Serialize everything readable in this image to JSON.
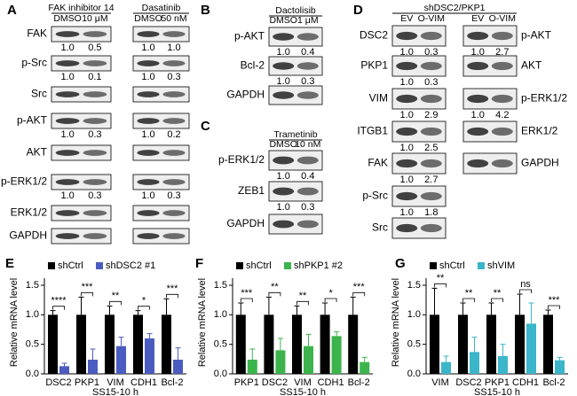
{
  "blots": [
    {
      "label": "A",
      "groups": [
        {
          "header": "FAK inhibitor 14",
          "lanes": [
            "DMSO",
            "10 μM"
          ],
          "rows": [
            "FAK",
            "p-Src",
            "Src",
            "p-AKT",
            "AKT",
            "p-ERK1/2",
            "ERK1/2",
            "GAPDH"
          ],
          "quant": [
            [
              "1.0",
              "0.5"
            ],
            [
              "1.0",
              "0.1"
            ],
            null,
            [
              "1.0",
              "0.3"
            ],
            null,
            [
              "1.0",
              "0.3"
            ],
            null,
            null
          ]
        },
        {
          "header": "Dasatinib",
          "lanes": [
            "DMSO",
            "50 nM"
          ],
          "quant": [
            [
              "1.0",
              "1.0"
            ],
            [
              "1.0",
              "0.3"
            ],
            null,
            [
              "1.0",
              "0.2"
            ],
            null,
            [
              "1.0",
              "0.3"
            ],
            null,
            null
          ]
        }
      ]
    },
    {
      "label": "B",
      "groups": [
        {
          "header": "Dactolisib",
          "lanes": [
            "DMSO",
            "1 μM"
          ],
          "rows": [
            "p-AKT",
            "Bcl-2",
            "GAPDH"
          ],
          "quant": [
            [
              "1.0",
              "0.4"
            ],
            [
              "1.0",
              "0.3"
            ],
            null
          ]
        }
      ]
    },
    {
      "label": "C",
      "groups": [
        {
          "header": "Trametinib",
          "lanes": [
            "DMSO",
            "10 nM"
          ],
          "rows": [
            "p-ERK1/2",
            "ZEB1",
            "GAPDH"
          ],
          "quant": [
            [
              "1.0",
              "0.4"
            ],
            [
              "1.0",
              "0.3"
            ],
            null
          ]
        }
      ]
    },
    {
      "label": "D",
      "groups": [
        {
          "header": "shDSC2/PKP1",
          "lanes": [
            "EV",
            "O-VIM"
          ],
          "rows": [
            "DSC2",
            "PKP1",
            "VIM",
            "ITGB1",
            "FAK",
            "p-Src",
            "Src"
          ],
          "quant": [
            [
              "1.0",
              "0.3"
            ],
            [
              "1.0",
              "0.3"
            ],
            [
              "1.0",
              "2.9"
            ],
            [
              "1.0",
              "2.5"
            ],
            [
              "1.0",
              "2.7"
            ],
            [
              "1.0",
              "1.8"
            ],
            null
          ]
        },
        {
          "lanes": [
            "EV",
            "O-VIM"
          ],
          "rows": [
            "p-AKT",
            "AKT",
            "p-ERK1/2",
            "ERK1/2",
            "GAPDH"
          ],
          "quant": [
            [
              "1.0",
              "2.7"
            ],
            null,
            [
              "1.0",
              "4.2"
            ],
            null,
            null
          ]
        }
      ]
    }
  ],
  "chart_data": [
    {
      "type": "bar",
      "label": "E",
      "ylabel": "Relative mRNA level",
      "xlabel": "SS15-10 h",
      "categories": [
        "DSC2",
        "PKP1",
        "VIM",
        "CDH1",
        "Bcl-2"
      ],
      "series": [
        {
          "name": "shCtrl",
          "color": "#000000",
          "values": [
            1,
            1,
            1,
            1,
            1
          ],
          "errors": [
            0.07,
            0.3,
            0.15,
            0.07,
            0.27
          ]
        },
        {
          "name": "shDSC2 #1",
          "color": "#4a5cc0",
          "values": [
            0.13,
            0.24,
            0.47,
            0.6,
            0.24
          ],
          "errors": [
            0.05,
            0.18,
            0.15,
            0.08,
            0.2
          ]
        }
      ],
      "annotations": [
        "****",
        "***",
        "**",
        "*",
        "***"
      ],
      "ylim": [
        0,
        1.5
      ],
      "yticks": [
        {
          "value": 0,
          "label": "0.0"
        },
        0.5,
        {
          "value": 1,
          "label": "1.0"
        },
        1.5
      ]
    },
    {
      "type": "bar",
      "label": "F",
      "ylabel": "Relative mRNA level",
      "xlabel": "SS15-10 h",
      "categories": [
        "PKP1",
        "DSC2",
        "VIM",
        "CDH1",
        "Bcl-2"
      ],
      "series": [
        {
          "name": "shCtrl",
          "color": "#000000",
          "values": [
            1,
            1,
            1,
            1,
            1
          ],
          "errors": [
            0.2,
            0.3,
            0.15,
            0.2,
            0.3
          ]
        },
        {
          "name": "shPKP1 #2",
          "color": "#3cb44b",
          "values": [
            0.24,
            0.4,
            0.47,
            0.64,
            0.2
          ],
          "errors": [
            0.18,
            0.2,
            0.2,
            0.07,
            0.08
          ]
        }
      ],
      "annotations": [
        "***",
        "**",
        "**",
        "*",
        "***"
      ],
      "ylim": [
        0,
        1.5
      ],
      "yticks": [
        {
          "value": 0,
          "label": "0.0"
        },
        0.5,
        {
          "value": 1,
          "label": "1.0"
        },
        1.5
      ]
    },
    {
      "type": "bar",
      "label": "G",
      "ylabel": "Relative mRNA level",
      "xlabel": "SS15-10 h",
      "categories": [
        "VIM",
        "DSC2",
        "PKP1",
        "CDH1",
        "Bcl-2"
      ],
      "series": [
        {
          "name": "shCtrl",
          "color": "#000000",
          "values": [
            1,
            1,
            1,
            1,
            1
          ],
          "errors": [
            0.45,
            0.2,
            0.2,
            0.35,
            0.08
          ]
        },
        {
          "name": "shVIM",
          "color": "#3bb5c9",
          "values": [
            0.2,
            0.37,
            0.3,
            0.85,
            0.23
          ],
          "errors": [
            0.1,
            0.25,
            0.2,
            0.35,
            0.05
          ]
        }
      ],
      "annotations": [
        "**",
        "**",
        "**",
        "ns",
        "***"
      ],
      "ylim": [
        0,
        1.5
      ],
      "yticks": [
        {
          "value": 0,
          "label": "0.0"
        },
        0.5,
        {
          "value": 1,
          "label": "1.0"
        },
        1.5
      ]
    }
  ]
}
